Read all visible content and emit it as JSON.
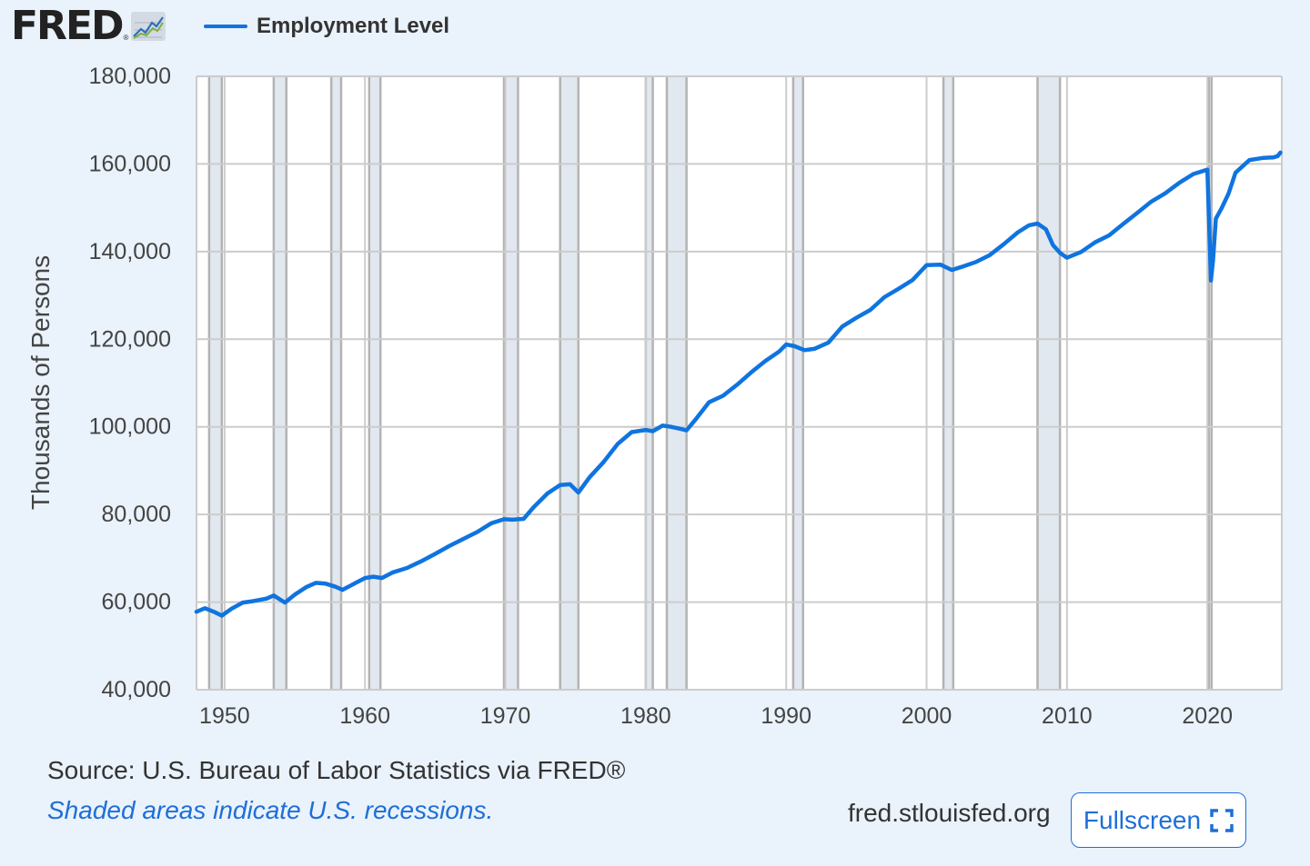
{
  "header": {
    "logo_text": "FRED",
    "logo_reg": "®",
    "logo_icon": "line-chart-icon"
  },
  "colors": {
    "series": "#0f74e0",
    "recession": "#e2e8ef",
    "grid": "#cccccc",
    "link": "#1e6fd6",
    "background": "#eaf2fb"
  },
  "chart_data": {
    "type": "line",
    "ylabel": "Thousands of Persons",
    "xlabel": "",
    "xlim": [
      1948.0,
      2025.3
    ],
    "ylim": [
      40000,
      180000
    ],
    "yticks": [
      40000,
      60000,
      80000,
      100000,
      120000,
      140000,
      160000,
      180000
    ],
    "ytick_labels": [
      "40,000",
      "60,000",
      "80,000",
      "100,000",
      "120,000",
      "140,000",
      "160,000",
      "180,000"
    ],
    "xticks": [
      1950,
      1960,
      1970,
      1980,
      1990,
      2000,
      2010,
      2020
    ],
    "xtick_labels": [
      "1950",
      "1960",
      "1970",
      "1980",
      "1990",
      "2000",
      "2010",
      "2020"
    ],
    "grid": true,
    "legend_position": "top-left",
    "series": [
      {
        "name": "Employment Level",
        "color": "#0f74e0",
        "x": [
          1948.0,
          1948.6,
          1949.3,
          1949.8,
          1950.5,
          1951.3,
          1952.0,
          1953.0,
          1953.5,
          1954.3,
          1955.0,
          1955.8,
          1956.5,
          1957.2,
          1957.9,
          1958.4,
          1959.3,
          1960.0,
          1960.6,
          1961.2,
          1962.0,
          1963.0,
          1964.0,
          1965.0,
          1966.0,
          1967.0,
          1968.0,
          1969.0,
          1969.9,
          1970.5,
          1971.3,
          1972.0,
          1973.0,
          1973.9,
          1974.6,
          1975.2,
          1976.0,
          1977.0,
          1978.0,
          1979.0,
          1980.0,
          1980.5,
          1981.2,
          1981.8,
          1982.5,
          1982.9,
          1983.5,
          1984.5,
          1985.5,
          1986.5,
          1987.5,
          1988.5,
          1989.5,
          1990.0,
          1990.6,
          1991.3,
          1992.0,
          1993.0,
          1994.0,
          1995.0,
          1996.0,
          1997.0,
          1998.0,
          1999.0,
          2000.0,
          2001.0,
          2001.8,
          2002.5,
          2003.5,
          2004.5,
          2005.5,
          2006.5,
          2007.3,
          2007.9,
          2008.5,
          2009.0,
          2009.5,
          2010.0,
          2011.0,
          2012.0,
          2013.0,
          2014.0,
          2015.0,
          2016.0,
          2017.0,
          2018.0,
          2019.0,
          2020.0,
          2020.25,
          2020.4,
          2020.6,
          2021.0,
          2021.5,
          2022.0,
          2023.0,
          2024.0,
          2024.7,
          2025.0,
          2025.2
        ],
        "y": [
          57800,
          58600,
          57700,
          56900,
          58500,
          59900,
          60200,
          60800,
          61500,
          59900,
          61700,
          63400,
          64400,
          64200,
          63500,
          62800,
          64300,
          65500,
          65800,
          65500,
          66800,
          67800,
          69300,
          71000,
          72800,
          74400,
          76000,
          78000,
          78900,
          78800,
          79000,
          81600,
          84800,
          86700,
          86900,
          85000,
          88500,
          92000,
          96100,
          98800,
          99300,
          99000,
          100300,
          100000,
          99500,
          99200,
          101500,
          105600,
          107100,
          109600,
          112400,
          115000,
          117200,
          118800,
          118400,
          117500,
          117800,
          119200,
          122900,
          124900,
          126700,
          129600,
          131500,
          133500,
          136900,
          137000,
          135800,
          136500,
          137600,
          139200,
          141700,
          144400,
          146000,
          146400,
          145100,
          141500,
          139700,
          138600,
          139900,
          142100,
          143700,
          146300,
          148800,
          151400,
          153300,
          155700,
          157700,
          158700,
          133400,
          138000,
          147500,
          149800,
          153200,
          158000,
          160900,
          161400,
          161500,
          161800,
          162600
        ]
      }
    ],
    "recessions": [
      [
        1948.9,
        1949.8
      ],
      [
        1953.5,
        1954.4
      ],
      [
        1957.6,
        1958.3
      ],
      [
        1960.3,
        1961.1
      ],
      [
        1969.9,
        1970.9
      ],
      [
        1973.9,
        1975.2
      ],
      [
        1980.0,
        1980.5
      ],
      [
        1981.5,
        1982.9
      ],
      [
        1990.5,
        1991.2
      ],
      [
        2001.2,
        2001.9
      ],
      [
        2007.9,
        2009.5
      ],
      [
        2020.1,
        2020.3
      ]
    ]
  },
  "footer": {
    "source": "Source: U.S. Bureau of Labor Statistics via FRED®",
    "recession_note": "Shaded areas indicate U.S. recessions.",
    "site": "fred.stlouisfed.org",
    "fullscreen_label": "Fullscreen",
    "fullscreen_icon": "fullscreen-icon"
  }
}
